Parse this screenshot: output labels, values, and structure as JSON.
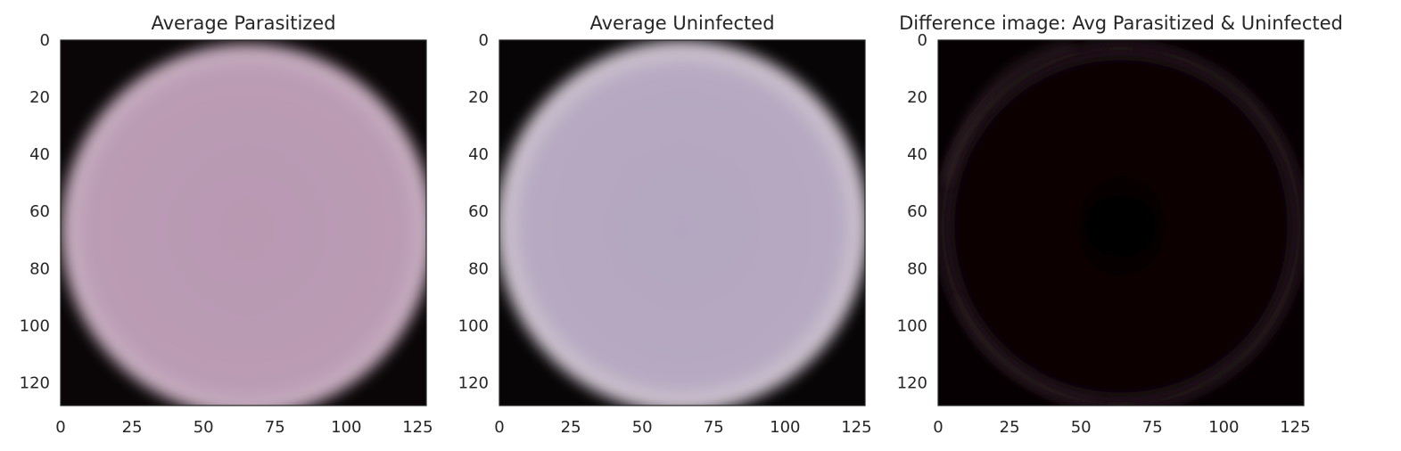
{
  "chart_data": [
    {
      "type": "heatmap",
      "title": "Average Parasitized",
      "xticks": [
        0,
        25,
        50,
        75,
        100,
        125
      ],
      "yticks": [
        0,
        20,
        40,
        60,
        80,
        100,
        120
      ],
      "xlim": [
        0,
        128
      ],
      "ylim": [
        128,
        0
      ],
      "grid": false,
      "colors": {
        "background": "#0a0607",
        "cell_center": "#b898b2",
        "cell_edge": "#c7aec0"
      }
    },
    {
      "type": "heatmap",
      "title": "Average Uninfected",
      "xticks": [
        0,
        25,
        50,
        75,
        100,
        125
      ],
      "yticks": [
        0,
        20,
        40,
        60,
        80,
        100,
        120
      ],
      "xlim": [
        0,
        128
      ],
      "ylim": [
        128,
        0
      ],
      "grid": false,
      "colors": {
        "background": "#070506",
        "cell_center": "#b4a6c0",
        "cell_edge": "#cdc3cf"
      }
    },
    {
      "type": "heatmap",
      "title": "Difference image: Avg Parasitized & Uninfected",
      "xticks": [
        0,
        25,
        50,
        75,
        100,
        125
      ],
      "yticks": [
        0,
        20,
        40,
        60,
        80,
        100,
        120
      ],
      "xlim": [
        0,
        128
      ],
      "ylim": [
        128,
        0
      ],
      "grid": false,
      "colors": {
        "background": "#060002",
        "ring": "#3a2a33"
      }
    }
  ]
}
